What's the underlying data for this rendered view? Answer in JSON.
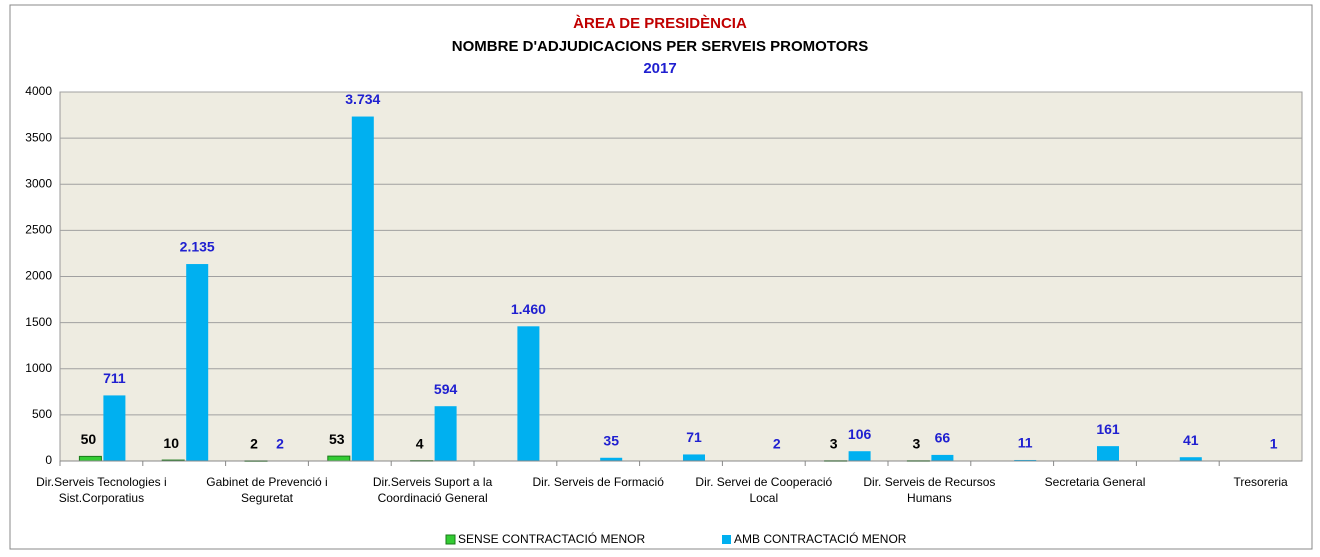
{
  "chart_data": {
    "type": "bar",
    "title": "ÀREA DE PRESIDÈNCIA",
    "subtitle": "NOMBRE D'ADJUDICACIONS PER SERVEIS PROMOTORS",
    "year": "2017",
    "categories": [
      "Dir.Serveis Tecnologies i Sist.Corporatius",
      null,
      "Gabinet de Prevenció i Seguretat",
      null,
      "Dir.Serveis Suport a la Coordinació General",
      null,
      "Dir. Serveis de Formació",
      null,
      "Dir. Servei de Cooperació Local",
      null,
      "Dir. Serveis de Recursos Humans",
      null,
      "Secretaria General",
      null,
      "Tresoreria"
    ],
    "series": [
      {
        "name": "SENSE CONTRACTACIÓ MENOR",
        "color": "#33cc33",
        "label_color": "#000000",
        "values": [
          50,
          10,
          2,
          53,
          4,
          null,
          null,
          null,
          null,
          3,
          3,
          null,
          null,
          null,
          null
        ]
      },
      {
        "name": "AMB CONTRACTACIÓ MENOR",
        "color": "#00b0f0",
        "label_color": "#1f1fd0",
        "values": [
          711,
          2135,
          2,
          3734,
          594,
          1460,
          35,
          71,
          2,
          106,
          66,
          11,
          161,
          41,
          1
        ],
        "value_labels": [
          "711",
          "2.135",
          "2",
          "3.734",
          "594",
          "1.460",
          "35",
          "71",
          "2",
          "106",
          "66",
          "11",
          "161",
          "41",
          "1"
        ]
      }
    ],
    "ylim": [
      0,
      4000
    ],
    "yticks": [
      0,
      500,
      1000,
      1500,
      2000,
      2500,
      3000,
      3500,
      4000
    ],
    "grid": true,
    "legend": "bottom"
  }
}
